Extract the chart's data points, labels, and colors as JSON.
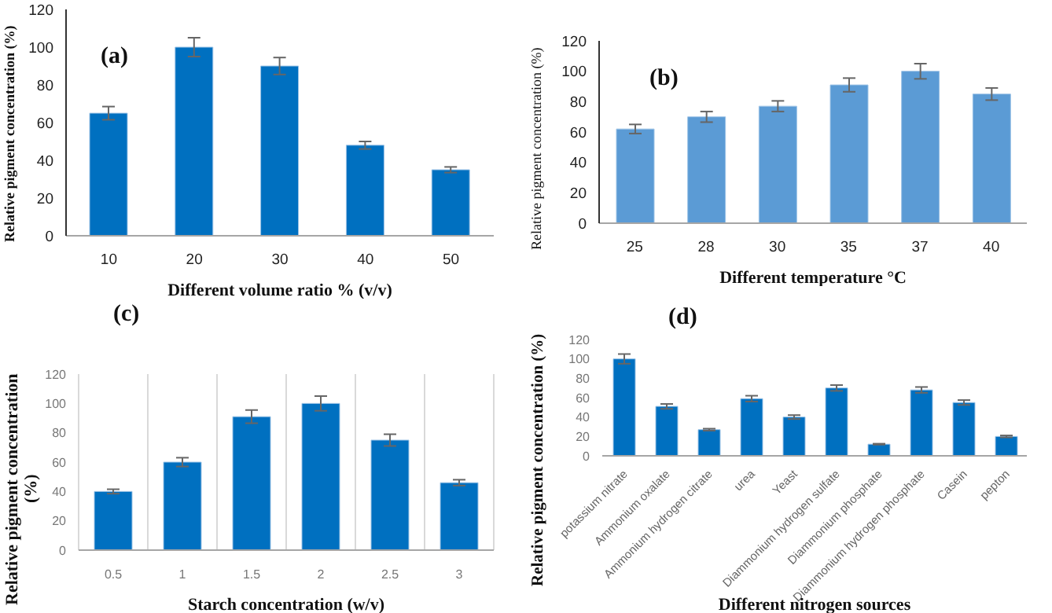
{
  "chart_data": [
    {
      "type": "bar",
      "title": "(a)",
      "xlabel": "Different volume ratio % (v/v)",
      "ylabel": "Relative pigment concentration (%)",
      "categories": [
        "10",
        "20",
        "30",
        "40",
        "50"
      ],
      "values": [
        65,
        100,
        90,
        48,
        35
      ],
      "errors": [
        3.5,
        5,
        4.5,
        2,
        1.5
      ],
      "color": "#0070c0",
      "ylim": [
        0,
        120
      ],
      "yticks": [
        0,
        20,
        40,
        60,
        80,
        100,
        120
      ],
      "grid": false,
      "legend": false
    },
    {
      "type": "bar",
      "title": "(b)",
      "xlabel": "Different temperature °C",
      "ylabel": "Relative pigment concentration (%)",
      "categories": [
        "25",
        "28",
        "30",
        "35",
        "37",
        "40"
      ],
      "values": [
        62,
        70,
        77,
        91,
        100,
        85
      ],
      "errors": [
        3,
        3.5,
        3.5,
        4.5,
        5,
        4
      ],
      "color": "#5b9bd5",
      "ylim": [
        0,
        120
      ],
      "yticks": [
        0,
        20,
        40,
        60,
        80,
        100,
        120
      ],
      "grid": false,
      "legend": false
    },
    {
      "type": "bar",
      "title": "(c)",
      "xlabel": "Starch concentration (w/v)",
      "ylabel": "Relative pigment concentration (%)",
      "categories": [
        "0.5",
        "1",
        "1.5",
        "2",
        "2.5",
        "3"
      ],
      "values": [
        40,
        60,
        91,
        100,
        75,
        46
      ],
      "errors": [
        1.5,
        3,
        4.5,
        5,
        4,
        2
      ],
      "color": "#0070c0",
      "ylim": [
        0,
        120
      ],
      "yticks": [
        0,
        20,
        40,
        60,
        80,
        100,
        120
      ],
      "grid": "x",
      "legend": false
    },
    {
      "type": "bar",
      "title": "(d)",
      "xlabel": "Different nitrogen sources",
      "ylabel": "Relative pigment concentration (%)",
      "categories": [
        "potassium nitrate",
        "Ammonium oxalate",
        "Ammonium hydrogen citrate",
        "urea",
        "Yeast",
        "Diammonium hydrogen sulfate",
        "Diammonium phosphate",
        "Diammonium hydrogen phosphate",
        "Casein",
        "pepton"
      ],
      "values": [
        100,
        51,
        27,
        59,
        40,
        70,
        12,
        68,
        55,
        20
      ],
      "errors": [
        5,
        2.5,
        1,
        3,
        2,
        3,
        0.5,
        3,
        2.5,
        1
      ],
      "color": "#0070c0",
      "ylim": [
        0,
        120
      ],
      "yticks": [
        0,
        20,
        40,
        60,
        80,
        100,
        120
      ],
      "grid": false,
      "legend": false
    }
  ]
}
